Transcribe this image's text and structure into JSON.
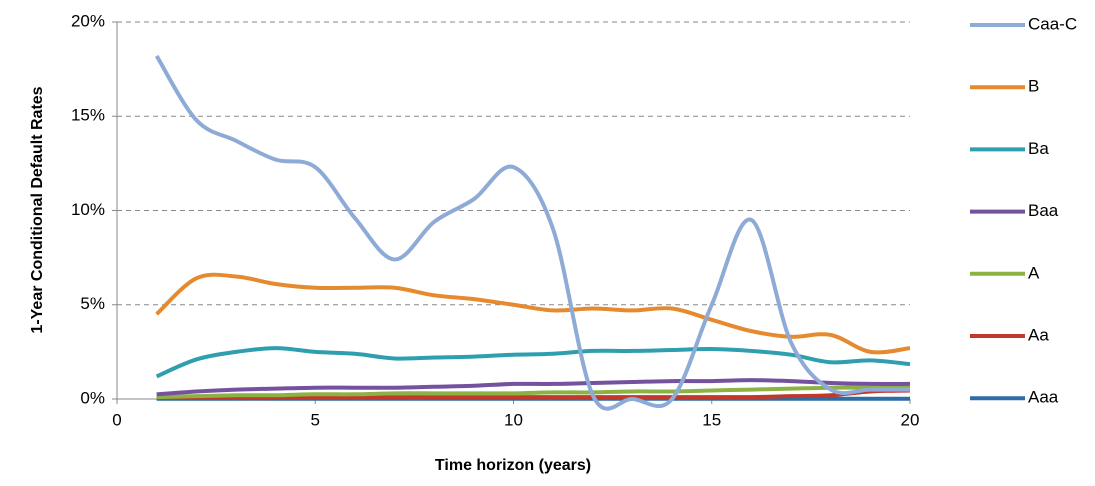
{
  "chart_data": {
    "type": "line",
    "x_label": "Time horizon (years)",
    "y_label": "1-Year Conditional Default Rates",
    "x": [
      1,
      2,
      3,
      4,
      5,
      6,
      7,
      8,
      9,
      10,
      11,
      12,
      13,
      14,
      15,
      16,
      17,
      18,
      19,
      20
    ],
    "xlim": [
      0,
      20
    ],
    "xticks": [
      0,
      5,
      10,
      15,
      20
    ],
    "ylim": [
      0,
      20
    ],
    "yticks": [
      {
        "value": 0,
        "label": "0%"
      },
      {
        "value": 5,
        "label": "5%"
      },
      {
        "value": 10,
        "label": "10%"
      },
      {
        "value": 15,
        "label": "15%"
      },
      {
        "value": 20,
        "label": "20%"
      }
    ],
    "grid": true,
    "legend": "right",
    "series": [
      {
        "name": "Caa-C",
        "color": "#8eaad6",
        "values": [
          18.2,
          14.8,
          13.7,
          12.7,
          12.3,
          9.6,
          7.4,
          9.4,
          10.6,
          12.3,
          9.0,
          0.2,
          0.0,
          0.0,
          5.0,
          9.5,
          3.0,
          0.5,
          0.5,
          0.5
        ]
      },
      {
        "name": "B",
        "color": "#e58a2f",
        "values": [
          4.5,
          6.4,
          6.5,
          6.1,
          5.9,
          5.9,
          5.9,
          5.5,
          5.3,
          5.0,
          4.7,
          4.8,
          4.7,
          4.8,
          4.2,
          3.6,
          3.3,
          3.4,
          2.5,
          2.7
        ]
      },
      {
        "name": "Ba",
        "color": "#2f9fb0",
        "values": [
          1.2,
          2.1,
          2.5,
          2.7,
          2.5,
          2.4,
          2.15,
          2.2,
          2.25,
          2.35,
          2.4,
          2.55,
          2.55,
          2.6,
          2.65,
          2.55,
          2.35,
          1.95,
          2.05,
          1.85
        ]
      },
      {
        "name": "Baa",
        "color": "#7452a0",
        "values": [
          0.25,
          0.4,
          0.5,
          0.55,
          0.6,
          0.6,
          0.6,
          0.65,
          0.7,
          0.8,
          0.8,
          0.85,
          0.9,
          0.95,
          0.95,
          1.0,
          0.95,
          0.85,
          0.8,
          0.8
        ]
      },
      {
        "name": "A",
        "color": "#8db244",
        "values": [
          0.1,
          0.15,
          0.2,
          0.2,
          0.25,
          0.25,
          0.3,
          0.3,
          0.3,
          0.3,
          0.35,
          0.35,
          0.4,
          0.4,
          0.45,
          0.5,
          0.55,
          0.6,
          0.6,
          0.6
        ]
      },
      {
        "name": "Aa",
        "color": "#c0392b",
        "values": [
          0.05,
          0.05,
          0.05,
          0.05,
          0.1,
          0.1,
          0.1,
          0.1,
          0.1,
          0.1,
          0.1,
          0.1,
          0.1,
          0.1,
          0.1,
          0.1,
          0.15,
          0.2,
          0.4,
          0.45
        ]
      },
      {
        "name": "Aaa",
        "color": "#2e6ca8",
        "values": [
          0.01,
          0.01,
          0.01,
          0.01,
          0.01,
          0.01,
          0.01,
          0.01,
          0.01,
          0.01,
          0.01,
          0.01,
          0.01,
          0.01,
          0.01,
          0.01,
          0.01,
          0.01,
          0.01,
          0.01
        ]
      }
    ]
  }
}
